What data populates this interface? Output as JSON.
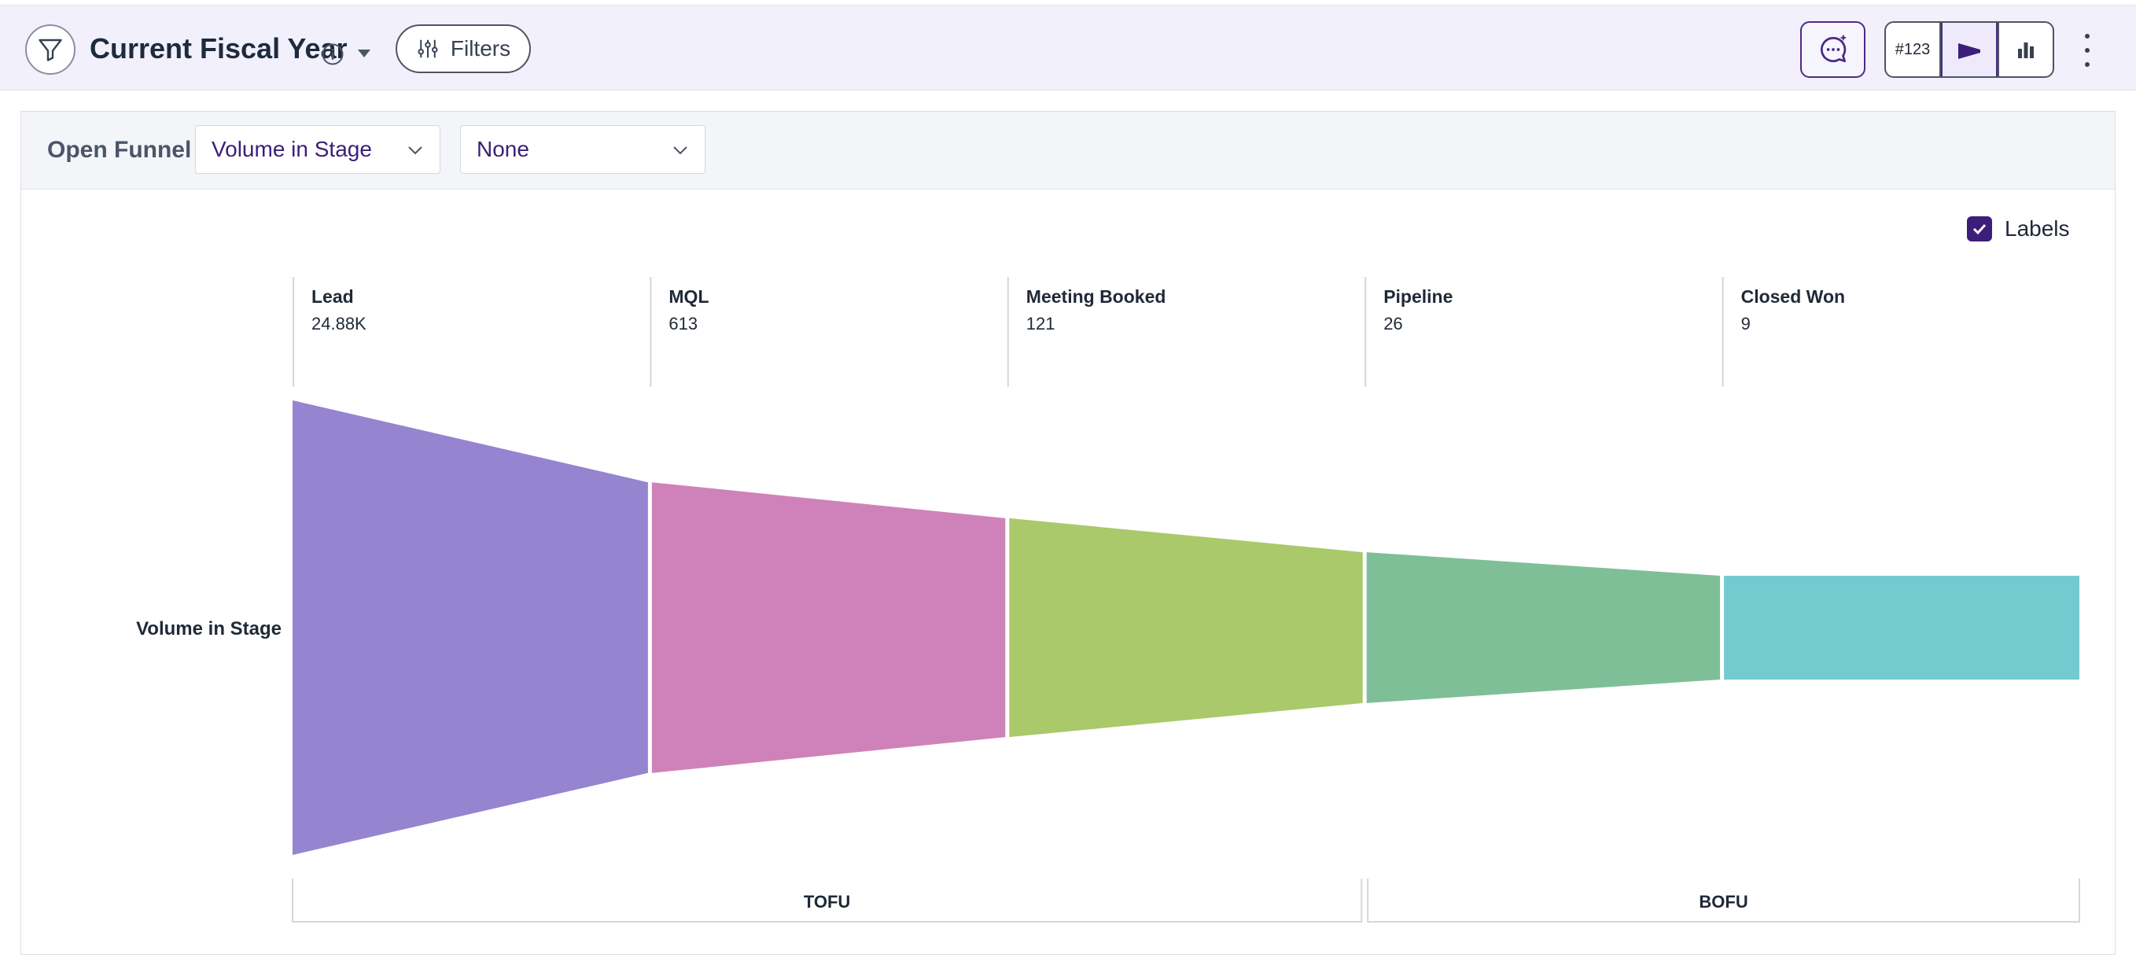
{
  "header": {
    "title": "Current Fiscal Year",
    "filters_label": "Filters",
    "view_toggle_number_label": "#123"
  },
  "toolbar": {
    "label": "Open Funnel",
    "metric_select": "Volume in Stage",
    "breakdown_select": "None"
  },
  "labels_toggle": {
    "label": "Labels",
    "checked": true
  },
  "icons": {
    "filter": "funnel-icon",
    "info": "info-icon",
    "dropdown": "caret-down-icon",
    "filters": "sliders-icon",
    "assistant": "ai-chat-icon",
    "funnel_view": "funnel-view-icon",
    "bar_view": "bar-chart-icon",
    "more": "more-vertical-icon"
  },
  "colors": {
    "accent": "#3b1e7a",
    "lead": "#9584cf",
    "mql": "#cf82b9",
    "meeting_booked": "#a9c96b",
    "pipeline": "#7fbf97",
    "closed_won": "#73cbd0"
  },
  "chart_data": {
    "type": "funnel",
    "ylabel": "Volume in Stage",
    "stages": [
      {
        "name": "Lead",
        "display": "24.88K",
        "value": 24880,
        "color": "#9584cf"
      },
      {
        "name": "MQL",
        "display": "613",
        "value": 613,
        "color": "#cf82b9"
      },
      {
        "name": "Meeting Booked",
        "display": "121",
        "value": 121,
        "color": "#a9c96b"
      },
      {
        "name": "Pipeline",
        "display": "26",
        "value": 26,
        "color": "#7fbf97"
      },
      {
        "name": "Closed Won",
        "display": "9",
        "value": 9,
        "color": "#73cbd0"
      }
    ],
    "groups": [
      {
        "name": "TOFU",
        "stages": [
          "Lead",
          "MQL",
          "Meeting Booked"
        ]
      },
      {
        "name": "BOFU",
        "stages": [
          "Pipeline",
          "Closed Won"
        ]
      }
    ]
  }
}
